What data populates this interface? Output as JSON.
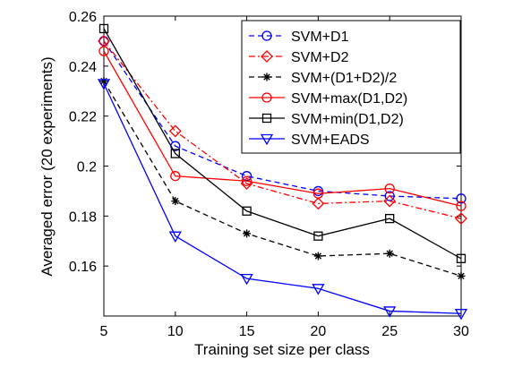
{
  "chart_data": {
    "type": "line",
    "title": "",
    "xlabel": "Training set size per class",
    "ylabel": "Averaged error (20 experiments)",
    "x": [
      5,
      10,
      15,
      20,
      25,
      30
    ],
    "xlim": [
      5,
      30
    ],
    "ylim": [
      0.14,
      0.26
    ],
    "xticks": [
      "5",
      "10",
      "15",
      "20",
      "25",
      "30"
    ],
    "yticks": [
      "0.16",
      "0.18",
      "0.2",
      "0.22",
      "0.24",
      "0.26"
    ],
    "grid": false,
    "legend_position": "top-right",
    "series": [
      {
        "name": "SVM+D1",
        "color": "#0000ff",
        "dash": "dashed",
        "marker": "circle",
        "values": [
          0.25,
          0.208,
          0.196,
          0.19,
          0.188,
          0.187
        ]
      },
      {
        "name": "SVM+D2",
        "color": "#ff0000",
        "dash": "dashdot",
        "marker": "diamond",
        "values": [
          0.25,
          0.214,
          0.193,
          0.185,
          0.186,
          0.179
        ]
      },
      {
        "name": "SVM+(D1+D2)/2",
        "color": "#000000",
        "dash": "dashed",
        "marker": "star",
        "values": [
          0.234,
          0.186,
          0.173,
          0.164,
          0.165,
          0.156
        ]
      },
      {
        "name": "SVM+max(D1,D2)",
        "color": "#ff0000",
        "dash": "solid",
        "marker": "circle",
        "values": [
          0.246,
          0.196,
          0.194,
          0.189,
          0.191,
          0.184
        ]
      },
      {
        "name": "SVM+min(D1,D2)",
        "color": "#000000",
        "dash": "solid",
        "marker": "square",
        "values": [
          0.255,
          0.205,
          0.182,
          0.172,
          0.179,
          0.163
        ]
      },
      {
        "name": "SVM+EADS",
        "color": "#0000ff",
        "dash": "solid",
        "marker": "triangle-down",
        "values": [
          0.233,
          0.172,
          0.155,
          0.151,
          0.142,
          0.141
        ]
      }
    ]
  }
}
